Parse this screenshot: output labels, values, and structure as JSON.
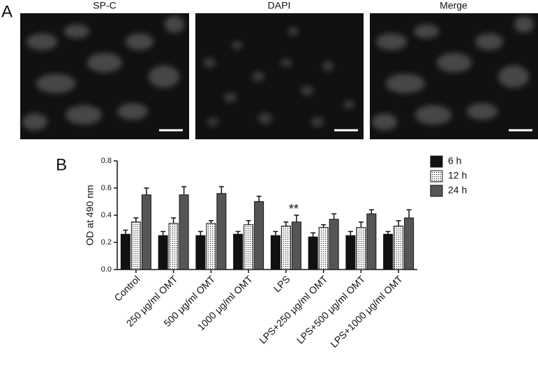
{
  "panel_labels": [
    "A",
    "B"
  ],
  "images": [
    {
      "title": "SP-C"
    },
    {
      "title": "DAPI"
    },
    {
      "title": "Merge"
    }
  ],
  "chart_data": {
    "type": "bar",
    "ylabel": "OD at 490 nm",
    "categories": [
      "Control",
      "250 μg/ml OMT",
      "500 μg/ml OMT",
      "1000 μg/ml OMT",
      "LPS",
      "LPS+250 μg/ml OMT",
      "LPS+500 μg/ml OMT",
      "LPS+1000 μg/ml OMT"
    ],
    "series": [
      {
        "name": "6 h",
        "color": "#111111",
        "values": [
          0.26,
          0.25,
          0.25,
          0.26,
          0.25,
          0.24,
          0.25,
          0.26
        ],
        "errors": [
          0.03,
          0.03,
          0.03,
          0.02,
          0.03,
          0.03,
          0.03,
          0.02
        ]
      },
      {
        "name": "12 h",
        "color": "#ffffff",
        "values": [
          0.35,
          0.34,
          0.34,
          0.33,
          0.32,
          0.31,
          0.31,
          0.32
        ],
        "errors": [
          0.03,
          0.04,
          0.02,
          0.03,
          0.03,
          0.02,
          0.04,
          0.04
        ]
      },
      {
        "name": "24 h",
        "color": "#555555",
        "values": [
          0.55,
          0.55,
          0.56,
          0.5,
          0.35,
          0.37,
          0.41,
          0.38
        ],
        "errors": [
          0.05,
          0.06,
          0.05,
          0.04,
          0.05,
          0.04,
          0.03,
          0.06
        ]
      }
    ],
    "ylim": [
      0,
      0.8
    ],
    "yticks": [
      {
        "value": 0,
        "label": "0.0"
      },
      0.2,
      0.4,
      0.6,
      0.8
    ],
    "annotation": "**",
    "legend": "top-right"
  }
}
